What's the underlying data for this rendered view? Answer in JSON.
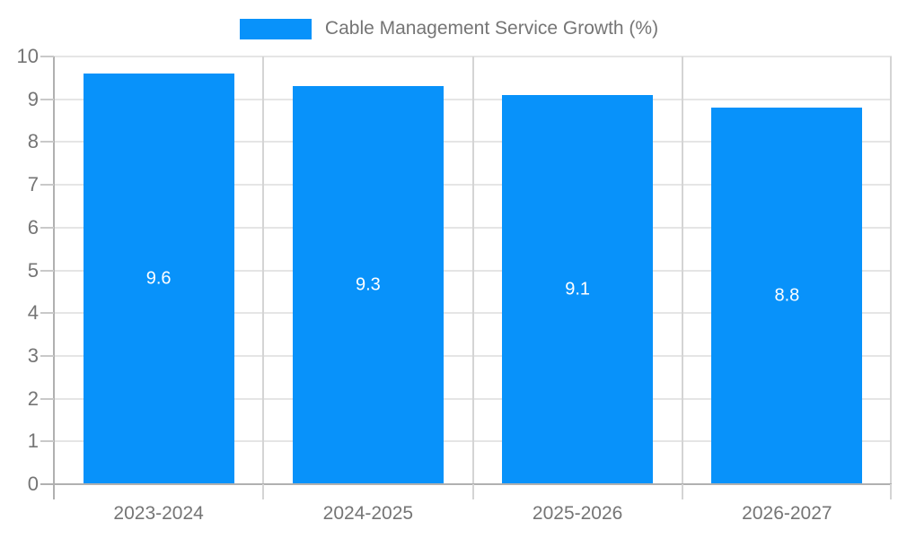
{
  "legend": {
    "label": "Cable Management Service Growth (%)"
  },
  "colors": {
    "bar": "#0892fa",
    "grid": "#e5e5e5",
    "separator": "#d4d4d4",
    "axis": "#b0b0b0",
    "axis_tick": "#c9c9c9",
    "tick_label": "#757575",
    "value_label": "#ffffff"
  },
  "chart_data": {
    "type": "bar",
    "categories": [
      "2023-2024",
      "2024-2025",
      "2025-2026",
      "2026-2027"
    ],
    "values": [
      9.6,
      9.3,
      9.1,
      8.8
    ],
    "title": "Cable Management Service Growth (%)",
    "xlabel": "",
    "ylabel": "",
    "ylim": [
      0,
      10
    ],
    "yticks": [
      0,
      1,
      2,
      3,
      4,
      5,
      6,
      7,
      8,
      9,
      10
    ],
    "legend_position": "top",
    "grid": true,
    "value_labels": "inside-center",
    "bar_width_fraction": 0.72
  }
}
